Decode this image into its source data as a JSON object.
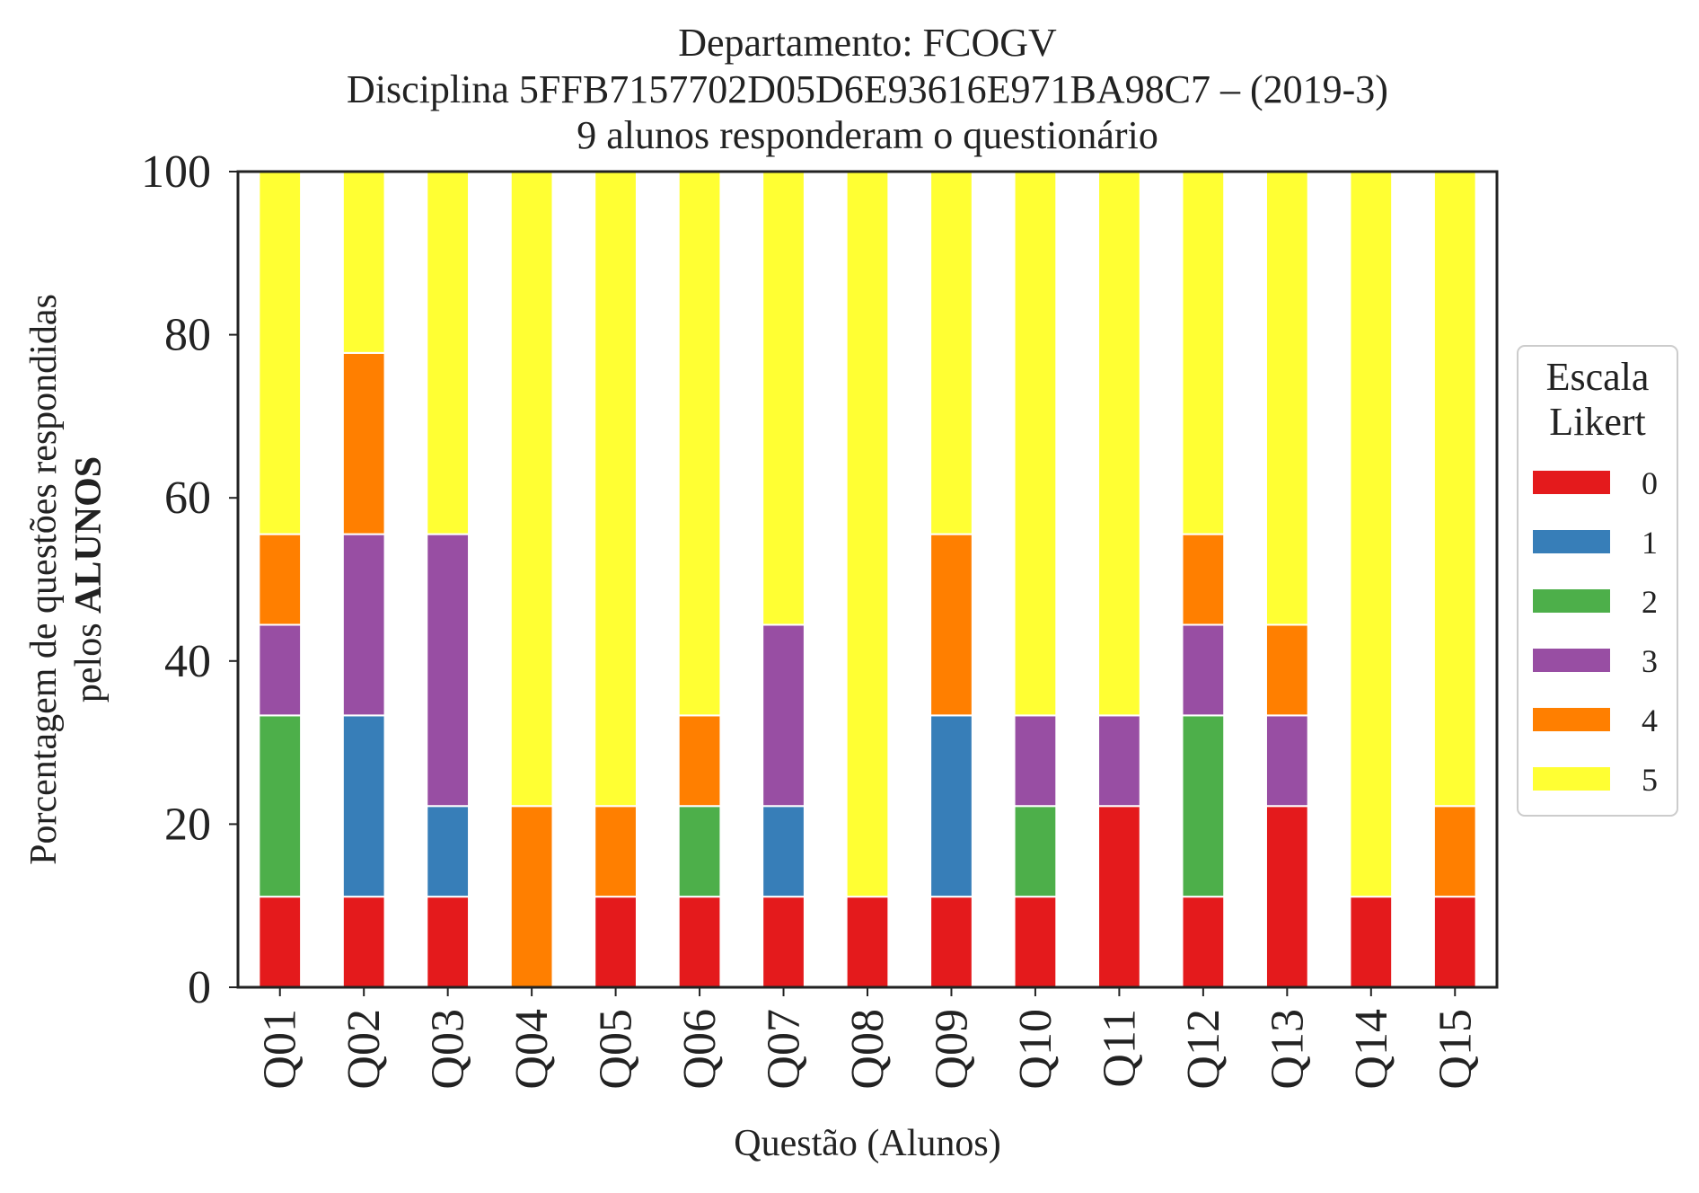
{
  "chart_data": {
    "type": "bar",
    "stacked": true,
    "title_lines": [
      "Departamento: FCOGV",
      "Disciplina 5FFB7157702D05D6E93616E971BA98C7 – (2019-3)",
      "9 alunos responderam o questionário"
    ],
    "xlabel": "Questão (Alunos)",
    "ylabel_line1": "Porcentagem de questões respondidas",
    "ylabel_line2_prefix": "pelos ",
    "ylabel_line2_bold": "ALUNOS",
    "ylim": [
      0,
      100
    ],
    "yticks": [
      0,
      20,
      40,
      60,
      80,
      100
    ],
    "grid": false,
    "legend": {
      "title_lines": [
        "Escala",
        "Likert"
      ],
      "position": "center-right outside"
    },
    "categories": [
      "Q01",
      "Q02",
      "Q03",
      "Q04",
      "Q05",
      "Q06",
      "Q07",
      "Q08",
      "Q09",
      "Q10",
      "Q11",
      "Q12",
      "Q13",
      "Q14",
      "Q15"
    ],
    "series": [
      {
        "name": "0",
        "color": "#e41a1c",
        "values": [
          11.11,
          11.11,
          11.11,
          0,
          11.11,
          11.11,
          11.11,
          11.11,
          11.11,
          11.11,
          22.22,
          11.11,
          22.22,
          11.11,
          11.11
        ]
      },
      {
        "name": "1",
        "color": "#377eb8",
        "values": [
          0,
          22.22,
          11.11,
          0,
          0,
          0,
          11.11,
          0,
          22.22,
          0,
          0,
          0,
          0,
          0,
          0
        ]
      },
      {
        "name": "2",
        "color": "#4daf4a",
        "values": [
          22.22,
          0,
          0,
          0,
          0,
          11.11,
          0,
          0,
          0,
          11.11,
          0,
          22.22,
          0,
          0,
          0
        ]
      },
      {
        "name": "3",
        "color": "#984ea3",
        "values": [
          11.11,
          22.22,
          33.33,
          0,
          0,
          0,
          22.22,
          0,
          0,
          11.11,
          11.11,
          11.11,
          11.11,
          0,
          0
        ]
      },
      {
        "name": "4",
        "color": "#ff7f00",
        "values": [
          11.11,
          22.22,
          0,
          22.22,
          11.11,
          11.11,
          0,
          0,
          22.22,
          0,
          0,
          11.11,
          11.11,
          0,
          11.11
        ]
      },
      {
        "name": "5",
        "color": "#ffff33",
        "values": [
          44.44,
          22.22,
          44.44,
          77.78,
          77.78,
          66.67,
          55.56,
          88.89,
          44.44,
          66.67,
          66.67,
          44.44,
          55.56,
          88.89,
          77.78
        ]
      }
    ]
  }
}
